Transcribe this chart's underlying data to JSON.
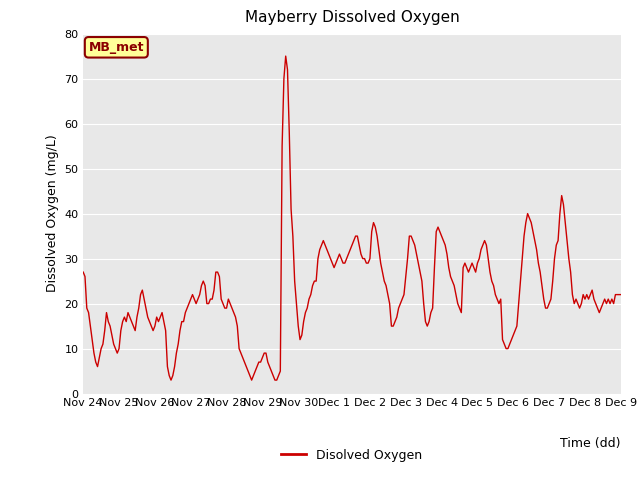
{
  "title": "Mayberry Dissolved Oxygen",
  "ylabel": "Dissolved Oxygen (mg/L)",
  "xlabel": "Time (dd)",
  "ylim": [
    0,
    80
  ],
  "line_color": "#cc0000",
  "bg_color": "#e8e8e8",
  "legend_label": "Disolved Oxygen",
  "annotation_text": "MB_met",
  "annotation_bg": "#ffff99",
  "annotation_border": "#8b0000",
  "xtick_labels": [
    "Nov 24",
    "Nov 25",
    "Nov 26",
    "Nov 27",
    "Nov 28",
    "Nov 29",
    "Nov 30",
    "Dec 1",
    "Dec 2",
    "Dec 3",
    "Dec 4",
    "Dec 5",
    "Dec 6",
    "Dec 7",
    "Dec 8",
    "Dec 9"
  ],
  "x_values": [
    0.0,
    0.05,
    0.1,
    0.15,
    0.2,
    0.25,
    0.3,
    0.35,
    0.4,
    0.45,
    0.5,
    0.55,
    0.6,
    0.65,
    0.7,
    0.75,
    0.8,
    0.85,
    0.9,
    0.95,
    1.0,
    1.05,
    1.1,
    1.15,
    1.2,
    1.25,
    1.3,
    1.35,
    1.4,
    1.45,
    1.5,
    1.55,
    1.6,
    1.65,
    1.7,
    1.75,
    1.8,
    1.85,
    1.9,
    1.95,
    2.0,
    2.05,
    2.1,
    2.15,
    2.2,
    2.25,
    2.3,
    2.35,
    2.4,
    2.45,
    2.5,
    2.55,
    2.6,
    2.65,
    2.7,
    2.75,
    2.8,
    2.85,
    2.9,
    2.95,
    3.0,
    3.05,
    3.1,
    3.15,
    3.2,
    3.25,
    3.3,
    3.35,
    3.4,
    3.45,
    3.5,
    3.55,
    3.6,
    3.65,
    3.7,
    3.75,
    3.8,
    3.85,
    3.9,
    3.95,
    4.0,
    4.05,
    4.1,
    4.15,
    4.2,
    4.25,
    4.3,
    4.35,
    4.4,
    4.45,
    4.5,
    4.55,
    4.6,
    4.65,
    4.7,
    4.75,
    4.8,
    4.85,
    4.9,
    4.95,
    5.0,
    5.05,
    5.1,
    5.15,
    5.2,
    5.25,
    5.3,
    5.35,
    5.4,
    5.45,
    5.5,
    5.55,
    5.6,
    5.65,
    5.7,
    5.75,
    5.8,
    5.85,
    5.9,
    5.95,
    6.0,
    6.05,
    6.1,
    6.15,
    6.2,
    6.25,
    6.3,
    6.35,
    6.4,
    6.45,
    6.5,
    6.55,
    6.6,
    6.65,
    6.7,
    6.75,
    6.8,
    6.85,
    6.9,
    6.95,
    7.0,
    7.05,
    7.1,
    7.15,
    7.2,
    7.25,
    7.3,
    7.35,
    7.4,
    7.45,
    7.5,
    7.55,
    7.6,
    7.65,
    7.7,
    7.75,
    7.8,
    7.85,
    7.9,
    7.95,
    8.0,
    8.05,
    8.1,
    8.15,
    8.2,
    8.25,
    8.3,
    8.35,
    8.4,
    8.45,
    8.5,
    8.55,
    8.6,
    8.65,
    8.7,
    8.75,
    8.8,
    8.85,
    8.9,
    8.95,
    9.0,
    9.05,
    9.1,
    9.15,
    9.2,
    9.25,
    9.3,
    9.35,
    9.4,
    9.45,
    9.5,
    9.55,
    9.6,
    9.65,
    9.7,
    9.75,
    9.8,
    9.85,
    9.9,
    9.95,
    10.0,
    10.05,
    10.1,
    10.15,
    10.2,
    10.25,
    10.3,
    10.35,
    10.4,
    10.45,
    10.5,
    10.55,
    10.6,
    10.65,
    10.7,
    10.75,
    10.8,
    10.85,
    10.9,
    10.95,
    11.0,
    11.05,
    11.1,
    11.15,
    11.2,
    11.25,
    11.3,
    11.35,
    11.4,
    11.45,
    11.5,
    11.55,
    11.6,
    11.65,
    11.7,
    11.75,
    11.8,
    11.85,
    11.9,
    11.95,
    12.0,
    12.05,
    12.1,
    12.15,
    12.2,
    12.25,
    12.3,
    12.35,
    12.4,
    12.45,
    12.5,
    12.55,
    12.6,
    12.65,
    12.7,
    12.75,
    12.8,
    12.85,
    12.9,
    12.95,
    13.0,
    13.05,
    13.1,
    13.15,
    13.2,
    13.25,
    13.3,
    13.35,
    13.4,
    13.45,
    13.5,
    13.55,
    13.6,
    13.65,
    13.7,
    13.75,
    13.8,
    13.85,
    13.9,
    13.95,
    14.0,
    14.05,
    14.1,
    14.15,
    14.2,
    14.25,
    14.3,
    14.35,
    14.4,
    14.45,
    14.5,
    14.55,
    14.6,
    14.65,
    14.7,
    14.75,
    14.8,
    14.85,
    14.9,
    14.95,
    15.0
  ],
  "y_values": [
    27,
    26,
    19,
    18,
    15,
    12,
    9,
    7,
    6,
    8,
    10,
    11,
    14,
    18,
    16,
    15,
    13,
    11,
    10,
    9,
    10,
    14,
    16,
    17,
    16,
    18,
    17,
    16,
    15,
    14,
    17,
    19,
    22,
    23,
    21,
    19,
    17,
    16,
    15,
    14,
    15,
    17,
    16,
    17,
    18,
    16,
    14,
    6,
    4,
    3,
    4,
    6,
    9,
    11,
    14,
    16,
    16,
    18,
    19,
    20,
    21,
    22,
    21,
    20,
    21,
    22,
    24,
    25,
    24,
    20,
    20,
    21,
    21,
    23,
    27,
    27,
    26,
    21,
    20,
    19,
    19,
    21,
    20,
    19,
    18,
    17,
    15,
    10,
    9,
    8,
    7,
    6,
    5,
    4,
    3,
    4,
    5,
    6,
    7,
    7,
    8,
    9,
    9,
    7,
    6,
    5,
    4,
    3,
    3,
    4,
    5,
    55,
    70,
    75,
    72,
    58,
    41,
    35,
    25,
    20,
    15,
    12,
    13,
    16,
    18,
    19,
    21,
    22,
    24,
    25,
    25,
    30,
    32,
    33,
    34,
    33,
    32,
    31,
    30,
    29,
    28,
    29,
    30,
    31,
    30,
    29,
    29,
    30,
    31,
    32,
    33,
    34,
    35,
    35,
    33,
    31,
    30,
    30,
    29,
    29,
    30,
    36,
    38,
    37,
    35,
    32,
    29,
    27,
    25,
    24,
    22,
    20,
    15,
    15,
    16,
    17,
    19,
    20,
    21,
    22,
    26,
    30,
    35,
    35,
    34,
    33,
    31,
    29,
    27,
    25,
    20,
    16,
    15,
    16,
    18,
    19,
    28,
    36,
    37,
    36,
    35,
    34,
    33,
    31,
    28,
    26,
    25,
    24,
    22,
    20,
    19,
    18,
    28,
    29,
    28,
    27,
    28,
    29,
    28,
    27,
    29,
    30,
    32,
    33,
    34,
    33,
    30,
    27,
    25,
    24,
    22,
    21,
    20,
    21,
    12,
    11,
    10,
    10,
    11,
    12,
    13,
    14,
    15,
    20,
    25,
    30,
    35,
    38,
    40,
    39,
    38,
    36,
    34,
    32,
    29,
    27,
    24,
    21,
    19,
    19,
    20,
    21,
    25,
    30,
    33,
    34,
    40,
    44,
    42,
    38,
    34,
    30,
    27,
    22,
    20,
    21,
    20,
    19,
    20,
    22,
    21,
    22,
    21,
    22,
    23,
    21,
    20,
    19,
    18,
    19,
    20,
    21,
    20,
    21,
    20,
    21,
    20,
    22,
    22,
    22,
    22
  ]
}
